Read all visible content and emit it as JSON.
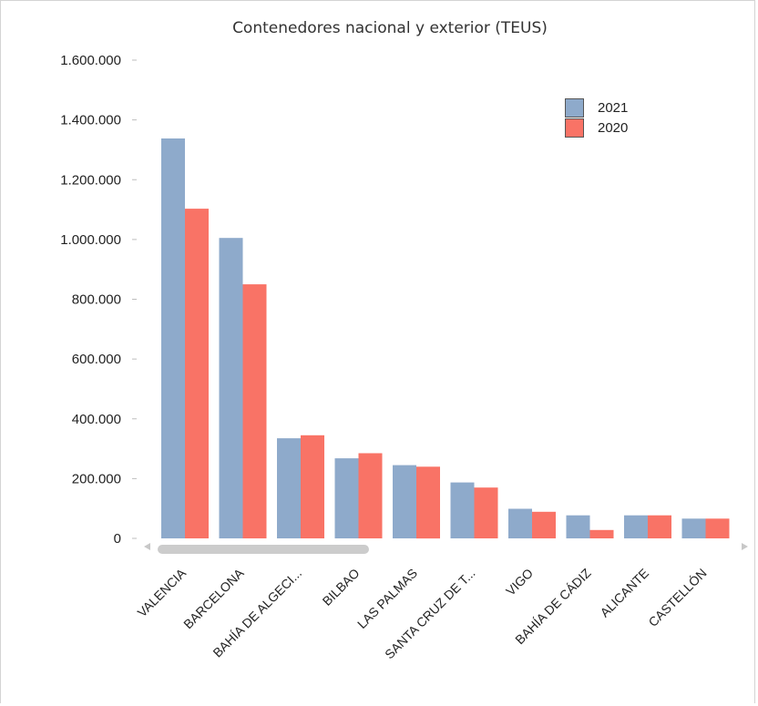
{
  "chart_data": {
    "type": "bar",
    "title": "Contenedores nacional y exterior (TEUS)",
    "xlabel": "",
    "ylabel": "",
    "ylim": [
      0,
      1600000
    ],
    "yticks": [
      0,
      200000,
      400000,
      600000,
      800000,
      1000000,
      1200000,
      1400000,
      1600000
    ],
    "ytick_labels": [
      "0",
      "200.000",
      "400.000",
      "600.000",
      "800.000",
      "1.000.000",
      "1.200.000",
      "1.400.000",
      "1.600.000"
    ],
    "grid": false,
    "legend_position": "top-right",
    "categories": [
      "VALENCIA",
      "BARCELONA",
      "BAHÍA DE ALGECI...",
      "BILBAO",
      "LAS PALMAS",
      "SANTA CRUZ DE T...",
      "VIGO",
      "BAHÍA DE CÁDIZ",
      "ALICANTE",
      "CASTELLÓN"
    ],
    "series": [
      {
        "name": "2021",
        "color": "#8eaacb",
        "values": [
          1338000,
          1005000,
          335000,
          268000,
          245000,
          187000,
          99000,
          77000,
          77000,
          66000
        ]
      },
      {
        "name": "2020",
        "color": "#f97366",
        "values": [
          1103000,
          850000,
          345000,
          285000,
          240000,
          170000,
          89000,
          28000,
          77000,
          66000
        ]
      }
    ]
  }
}
